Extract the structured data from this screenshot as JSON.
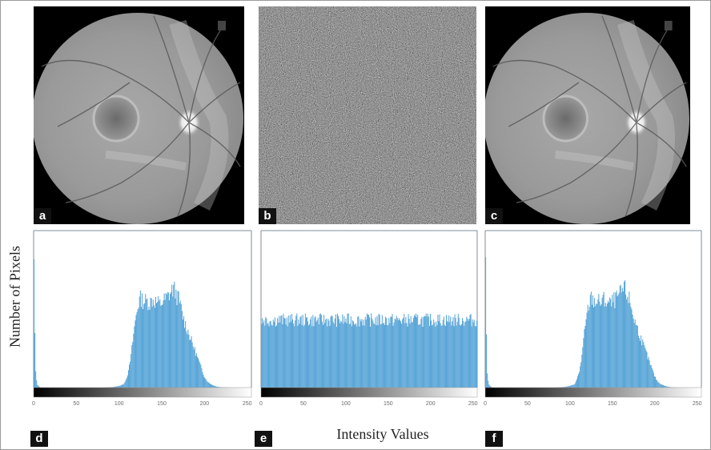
{
  "figure": {
    "panel_labels": [
      "a",
      "b",
      "c",
      "d",
      "e",
      "f"
    ],
    "ylabel": "Number of Pixels",
    "xlabel": "Intensity Values"
  },
  "chart_data": [
    {
      "type": "bar",
      "panel": "d",
      "x_ticks": [
        0,
        50,
        100,
        150,
        200,
        250
      ],
      "xlim": [
        0,
        255
      ],
      "x": [
        0,
        2,
        4,
        6,
        8,
        10,
        20,
        40,
        60,
        80,
        90,
        95,
        100,
        105,
        108,
        111,
        114,
        117,
        120,
        122,
        124,
        126,
        128,
        130,
        133,
        136,
        139,
        142,
        145,
        148,
        151,
        154,
        157,
        160,
        162,
        164,
        166,
        168,
        170,
        172,
        174,
        176,
        178,
        180,
        182,
        184,
        186,
        188,
        190,
        192,
        194,
        196,
        198,
        200,
        202,
        205,
        210,
        215,
        220,
        230,
        240,
        250,
        255
      ],
      "values": [
        1.0,
        0.12,
        0.02,
        0.01,
        0,
        0,
        0,
        0,
        0,
        0,
        0.002,
        0.005,
        0.01,
        0.02,
        0.05,
        0.1,
        0.2,
        0.34,
        0.46,
        0.52,
        0.56,
        0.57,
        0.55,
        0.55,
        0.55,
        0.54,
        0.56,
        0.55,
        0.54,
        0.53,
        0.55,
        0.56,
        0.58,
        0.6,
        0.62,
        0.63,
        0.61,
        0.58,
        0.56,
        0.52,
        0.47,
        0.43,
        0.4,
        0.37,
        0.34,
        0.31,
        0.28,
        0.25,
        0.22,
        0.19,
        0.16,
        0.13,
        0.1,
        0.07,
        0.05,
        0.03,
        0.015,
        0.005,
        0.002,
        0,
        0,
        0,
        0
      ]
    },
    {
      "type": "bar",
      "panel": "e",
      "x_ticks": [
        0,
        50,
        100,
        150,
        200,
        250
      ],
      "xlim": [
        0,
        255
      ],
      "x": [
        0,
        255
      ],
      "values": [
        0.43,
        0.43
      ]
    },
    {
      "type": "bar",
      "panel": "f",
      "x_ticks": [
        0,
        50,
        100,
        150,
        200,
        250
      ],
      "xlim": [
        0,
        255
      ],
      "x": [
        0,
        2,
        4,
        6,
        8,
        10,
        20,
        40,
        60,
        80,
        90,
        95,
        100,
        105,
        108,
        111,
        114,
        117,
        120,
        122,
        124,
        126,
        128,
        130,
        133,
        136,
        139,
        142,
        145,
        148,
        151,
        154,
        157,
        160,
        162,
        164,
        166,
        168,
        170,
        172,
        174,
        176,
        178,
        180,
        182,
        184,
        186,
        188,
        190,
        192,
        194,
        196,
        198,
        200,
        202,
        205,
        210,
        215,
        220,
        230,
        240,
        250,
        255
      ],
      "values": [
        1.0,
        0.12,
        0.02,
        0.01,
        0,
        0,
        0,
        0,
        0,
        0,
        0.002,
        0.005,
        0.01,
        0.02,
        0.05,
        0.1,
        0.2,
        0.34,
        0.46,
        0.52,
        0.56,
        0.57,
        0.55,
        0.55,
        0.55,
        0.54,
        0.56,
        0.55,
        0.54,
        0.53,
        0.55,
        0.56,
        0.58,
        0.6,
        0.62,
        0.63,
        0.61,
        0.58,
        0.56,
        0.52,
        0.47,
        0.43,
        0.4,
        0.37,
        0.34,
        0.31,
        0.28,
        0.25,
        0.22,
        0.19,
        0.16,
        0.13,
        0.1,
        0.07,
        0.05,
        0.03,
        0.015,
        0.005,
        0.002,
        0,
        0,
        0,
        0
      ]
    }
  ],
  "colors": {
    "bar": "#5aa6d8",
    "axis": "#7f8c99",
    "badge": "#111111"
  }
}
